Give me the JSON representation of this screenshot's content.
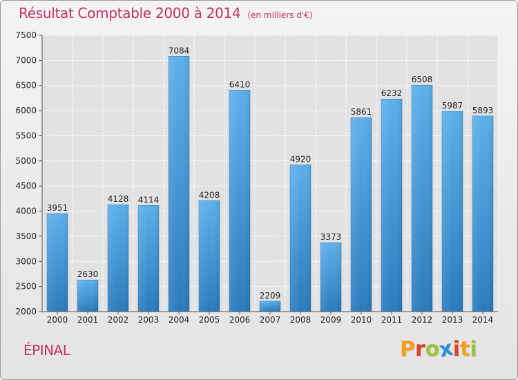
{
  "header": {
    "title": "Résultat Comptable 2000 à 2014",
    "subtitle": "(en milliers d'€)"
  },
  "footer": {
    "commune": "ÉPINAL",
    "logo_letters": [
      "P",
      "r",
      "o",
      "x",
      "i",
      "t",
      "i"
    ],
    "logo_colors": [
      "#f3a01b",
      "#e2402a",
      "#9bc43a",
      "#2b8fd8",
      "#e2402a",
      "#f3a01b",
      "#9bc43a"
    ]
  },
  "colors": {
    "accent": "#c0335e",
    "bar_top": "#5db0ea",
    "bar_bottom": "#2a7bbd"
  },
  "chart_data": {
    "type": "bar",
    "title": "Résultat Comptable 2000 à 2014",
    "xlabel": "",
    "ylabel": "",
    "categories": [
      "2000",
      "2001",
      "2002",
      "2003",
      "2004",
      "2005",
      "2006",
      "2007",
      "2008",
      "2009",
      "2010",
      "2011",
      "2012",
      "2013",
      "2014"
    ],
    "values": [
      3951,
      2630,
      4128,
      4114,
      7084,
      4208,
      6410,
      2209,
      4920,
      3373,
      5861,
      6232,
      6508,
      5987,
      5893
    ],
    "ylim": [
      2000,
      7500
    ],
    "yticks": [
      2000,
      2500,
      3000,
      3500,
      4000,
      4500,
      5000,
      5500,
      6000,
      6500,
      7000,
      7500
    ],
    "grid": true
  }
}
